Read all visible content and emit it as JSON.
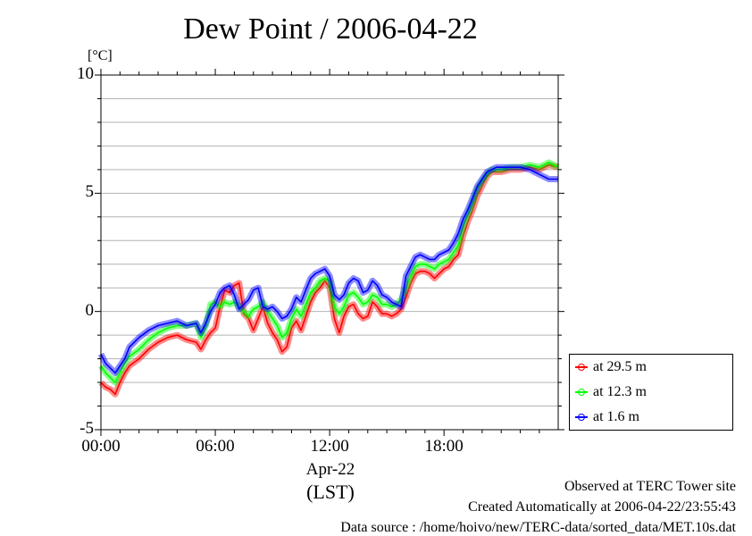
{
  "chart_data": {
    "type": "line",
    "title": "Dew Point / 2006-04-22",
    "ylabel": "[°C]",
    "xlabel": "(LST)",
    "x_date_label": "Apr-22",
    "xlim": [
      0,
      23.99
    ],
    "ylim": [
      -5,
      10
    ],
    "yticks": [
      -5,
      0,
      5,
      10
    ],
    "ytick_labels": [
      "-5",
      "0",
      "5",
      "10"
    ],
    "xticks": [
      0,
      6,
      12,
      18
    ],
    "xtick_labels": [
      "00:00",
      "06:00",
      "12:00",
      "18:00"
    ],
    "grid": true,
    "legend_position": "right-bottom-outside",
    "x": [
      0,
      0.25,
      0.5,
      0.75,
      1,
      1.25,
      1.5,
      2,
      2.5,
      3,
      3.5,
      4,
      4.5,
      5,
      5.25,
      5.5,
      5.75,
      6,
      6.25,
      6.5,
      6.75,
      7,
      7.25,
      7.5,
      7.75,
      8,
      8.25,
      8.5,
      8.75,
      9,
      9.25,
      9.5,
      9.75,
      10,
      10.25,
      10.5,
      10.75,
      11,
      11.25,
      11.5,
      11.75,
      12,
      12.25,
      12.5,
      12.75,
      13,
      13.25,
      13.5,
      13.75,
      14,
      14.25,
      14.5,
      14.75,
      15,
      15.25,
      15.5,
      15.75,
      16,
      16.25,
      16.5,
      16.75,
      17,
      17.25,
      17.5,
      17.75,
      18,
      18.25,
      18.5,
      18.75,
      19,
      19.25,
      19.5,
      19.75,
      20,
      20.25,
      20.5,
      20.75,
      21,
      21.5,
      22,
      22.5,
      23,
      23.5,
      23.99
    ],
    "series": [
      {
        "name": "at 29.5 m",
        "color": "#ff0000",
        "values": [
          -3.0,
          -3.2,
          -3.3,
          -3.5,
          -3.0,
          -2.6,
          -2.3,
          -2.0,
          -1.6,
          -1.3,
          -1.1,
          -1.0,
          -1.2,
          -1.3,
          -1.6,
          -1.2,
          -0.9,
          -0.7,
          0.2,
          0.9,
          0.8,
          1.1,
          1.2,
          -0.1,
          -0.3,
          -0.8,
          -0.3,
          0.2,
          -0.5,
          -0.9,
          -1.2,
          -1.7,
          -1.5,
          -0.7,
          -0.4,
          -0.8,
          -0.2,
          0.4,
          0.8,
          1.0,
          1.3,
          1.0,
          -0.3,
          -0.9,
          -0.2,
          0.2,
          0.3,
          -0.1,
          -0.3,
          -0.2,
          0.4,
          0.2,
          -0.1,
          -0.1,
          -0.2,
          -0.1,
          0.1,
          0.6,
          1.2,
          1.6,
          1.7,
          1.7,
          1.6,
          1.4,
          1.6,
          1.8,
          1.9,
          2.2,
          2.4,
          3.2,
          3.8,
          4.3,
          4.9,
          5.3,
          5.7,
          5.9,
          5.9,
          5.9,
          6.0,
          6.0,
          6.1,
          6.0,
          6.2,
          6.1
        ]
      },
      {
        "name": "at 12.3 m",
        "color": "#00ff00",
        "values": [
          -2.3,
          -2.6,
          -2.8,
          -3.0,
          -2.6,
          -2.2,
          -1.9,
          -1.6,
          -1.2,
          -0.9,
          -0.7,
          -0.6,
          -0.6,
          -0.5,
          -1.1,
          -0.6,
          0.3,
          0.4,
          0.2,
          0.4,
          0.3,
          0.4,
          0.2,
          0.0,
          -0.2,
          0.1,
          0.2,
          0.4,
          0.0,
          -0.3,
          -0.6,
          -1.1,
          -0.9,
          -0.3,
          0.1,
          -0.2,
          0.3,
          0.8,
          1.0,
          1.3,
          1.4,
          1.3,
          0.2,
          -0.1,
          0.2,
          0.7,
          0.8,
          0.6,
          0.3,
          0.4,
          0.7,
          0.6,
          0.3,
          0.3,
          0.2,
          0.3,
          0.5,
          1.0,
          1.5,
          1.9,
          2.0,
          2.0,
          1.9,
          1.8,
          2.0,
          2.1,
          2.2,
          2.5,
          2.8,
          3.6,
          4.1,
          4.6,
          5.2,
          5.5,
          5.8,
          6.0,
          6.0,
          6.0,
          6.1,
          6.1,
          6.2,
          6.1,
          6.3,
          6.1
        ]
      },
      {
        "name": "at 1.6 m",
        "color": "#0000ff",
        "values": [
          -1.8,
          -2.2,
          -2.4,
          -2.6,
          -2.3,
          -2.0,
          -1.5,
          -1.1,
          -0.8,
          -0.6,
          -0.5,
          -0.4,
          -0.6,
          -0.5,
          -0.9,
          -0.5,
          0.0,
          0.3,
          0.8,
          1.0,
          1.1,
          0.7,
          0.1,
          0.3,
          0.5,
          0.9,
          1.0,
          0.2,
          0.1,
          0.2,
          0.0,
          -0.3,
          -0.2,
          0.1,
          0.6,
          0.4,
          0.9,
          1.4,
          1.6,
          1.7,
          1.8,
          1.5,
          0.7,
          0.5,
          0.7,
          1.2,
          1.4,
          1.3,
          0.8,
          0.9,
          1.3,
          1.1,
          0.7,
          0.6,
          0.4,
          0.3,
          0.2,
          1.5,
          1.9,
          2.3,
          2.4,
          2.3,
          2.2,
          2.2,
          2.4,
          2.5,
          2.6,
          2.9,
          3.3,
          3.9,
          4.3,
          4.8,
          5.3,
          5.6,
          5.9,
          6.0,
          6.1,
          6.1,
          6.1,
          6.1,
          6.0,
          5.8,
          5.6,
          5.6
        ]
      }
    ]
  },
  "footer": {
    "line1": "Observed at TERC Tower site",
    "line2": "Created Automatically at 2006-04-22/23:55:43",
    "line3": "Data source : /home/hoivo/new/TERC-data/sorted_data/MET.10s.dat"
  }
}
